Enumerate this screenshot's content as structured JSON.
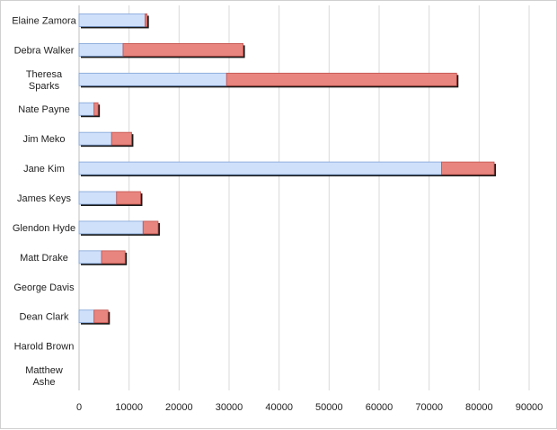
{
  "chart_data": {
    "type": "bar",
    "orientation": "horizontal",
    "stacked": true,
    "title": "",
    "xlabel": "",
    "ylabel": "",
    "xlim": [
      0,
      90000
    ],
    "xticks": [
      0,
      10000,
      20000,
      30000,
      40000,
      50000,
      60000,
      70000,
      80000,
      90000
    ],
    "xtick_labels": [
      "0",
      "10000",
      "20000",
      "30000",
      "40000",
      "50000",
      "60000",
      "70000",
      "80000",
      "90000"
    ],
    "grid": "vertical",
    "legend": "none",
    "categories": [
      [
        "Elaine Zamora"
      ],
      [
        "Debra Walker"
      ],
      [
        "Theresa",
        "Sparks"
      ],
      [
        "Nate Payne"
      ],
      [
        "Jim Meko"
      ],
      [
        "Jane Kim"
      ],
      [
        "James Keys"
      ],
      [
        "Glendon Hyde"
      ],
      [
        "Matt Drake"
      ],
      [
        "George Davis"
      ],
      [
        "Dean Clark"
      ],
      [
        "Harold Brown"
      ],
      [
        "Matthew",
        "Ashe"
      ]
    ],
    "series": [
      {
        "color": "#cfe0fb",
        "stroke": "#7fa2d6",
        "values": [
          13200,
          8800,
          29500,
          3000,
          6500,
          72500,
          7500,
          12800,
          4500,
          0,
          3000,
          0,
          0
        ]
      },
      {
        "color": "#e8857e",
        "stroke": "#c0504d",
        "values": [
          400,
          24000,
          46000,
          800,
          4000,
          10500,
          4800,
          3000,
          4700,
          0,
          2800,
          0,
          0
        ]
      }
    ]
  }
}
